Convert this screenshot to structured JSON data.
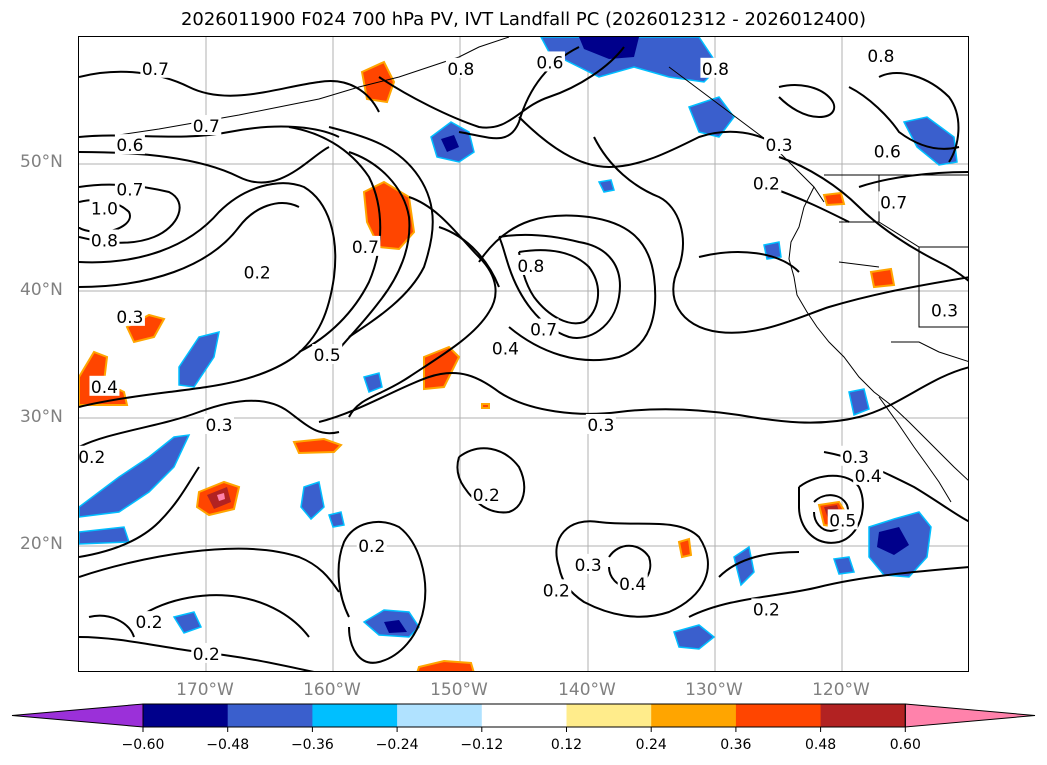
{
  "title": "2026011900 F024 700 hPa PV, IVT Landfall PC (2026012312 - 2026012400)",
  "map": {
    "lon_range": [
      -180,
      -110
    ],
    "lat_range": [
      10,
      60
    ],
    "lat_labels": [
      "50°N",
      "40°N",
      "30°N",
      "20°N"
    ],
    "lat_values": [
      50,
      40,
      30,
      20
    ],
    "lon_labels": [
      "170°W",
      "160°W",
      "150°W",
      "140°W",
      "130°W",
      "120°W"
    ],
    "lon_values": [
      -170,
      -160,
      -150,
      -140,
      -130,
      -120
    ],
    "gridlines": true,
    "contour_field": "700 hPa PV",
    "shaded_field": "IVT Landfall PC",
    "contour_labels": [
      {
        "text": "0.7",
        "lon": -174,
        "lat": 57.5
      },
      {
        "text": "0.7",
        "lon": -170,
        "lat": 53
      },
      {
        "text": "0.6",
        "lon": -176,
        "lat": 51.5
      },
      {
        "text": "0.7",
        "lon": -176,
        "lat": 48
      },
      {
        "text": "1.0",
        "lon": -178,
        "lat": 46.5
      },
      {
        "text": "0.8",
        "lon": -178,
        "lat": 44
      },
      {
        "text": "0.2",
        "lon": -166,
        "lat": 41.5
      },
      {
        "text": "0.3",
        "lon": -176,
        "lat": 38
      },
      {
        "text": "0.4",
        "lon": -178,
        "lat": 32.5
      },
      {
        "text": "0.3",
        "lon": -169,
        "lat": 29.5
      },
      {
        "text": "0.2",
        "lon": -179,
        "lat": 27
      },
      {
        "text": "0.7",
        "lon": -157.5,
        "lat": 43.5
      },
      {
        "text": "0.5",
        "lon": -160.5,
        "lat": 35
      },
      {
        "text": "0.8",
        "lon": -150,
        "lat": 57.5
      },
      {
        "text": "0.6",
        "lon": -143,
        "lat": 58
      },
      {
        "text": "0.8",
        "lon": -144.5,
        "lat": 42
      },
      {
        "text": "0.7",
        "lon": -143.5,
        "lat": 37
      },
      {
        "text": "0.4",
        "lon": -146.5,
        "lat": 35.5
      },
      {
        "text": "0.3",
        "lon": -139,
        "lat": 29.5
      },
      {
        "text": "0.2",
        "lon": -126,
        "lat": 48.5
      },
      {
        "text": "0.3",
        "lon": -125,
        "lat": 51.5
      },
      {
        "text": "0.8",
        "lon": -117,
        "lat": 58.5
      },
      {
        "text": "0.8",
        "lon": -130,
        "lat": 57.5
      },
      {
        "text": "0.6",
        "lon": -116.5,
        "lat": 51
      },
      {
        "text": "0.7",
        "lon": -116,
        "lat": 47
      },
      {
        "text": "0.3",
        "lon": -112,
        "lat": 38.5
      },
      {
        "text": "0.3",
        "lon": -119,
        "lat": 27
      },
      {
        "text": "0.4",
        "lon": -118,
        "lat": 25.5
      },
      {
        "text": "0.5",
        "lon": -120,
        "lat": 22
      },
      {
        "text": "0.2",
        "lon": -148,
        "lat": 24
      },
      {
        "text": "0.3",
        "lon": -140,
        "lat": 18.5
      },
      {
        "text": "0.2",
        "lon": -142.5,
        "lat": 16.5
      },
      {
        "text": "0.4",
        "lon": -136.5,
        "lat": 17
      },
      {
        "text": "0.2",
        "lon": -126,
        "lat": 15
      },
      {
        "text": "0.2",
        "lon": -174.5,
        "lat": 14
      },
      {
        "text": "0.2",
        "lon": -170,
        "lat": 11.5
      },
      {
        "text": "0.2",
        "lon": -157,
        "lat": 20
      }
    ]
  },
  "colorbar": {
    "ticks": [
      "−0.60",
      "−0.48",
      "−0.36",
      "−0.24",
      "−0.12",
      "0.12",
      "0.24",
      "0.36",
      "0.48",
      "0.60"
    ],
    "extend": "both",
    "colors": [
      "#9b30d9",
      "#00008b",
      "#3a5fcd",
      "#00bfff",
      "#b0e2ff",
      "#ffffff",
      "#ffec8b",
      "#ffa500",
      "#ff4500",
      "#b22222",
      "#ff82ab"
    ]
  }
}
